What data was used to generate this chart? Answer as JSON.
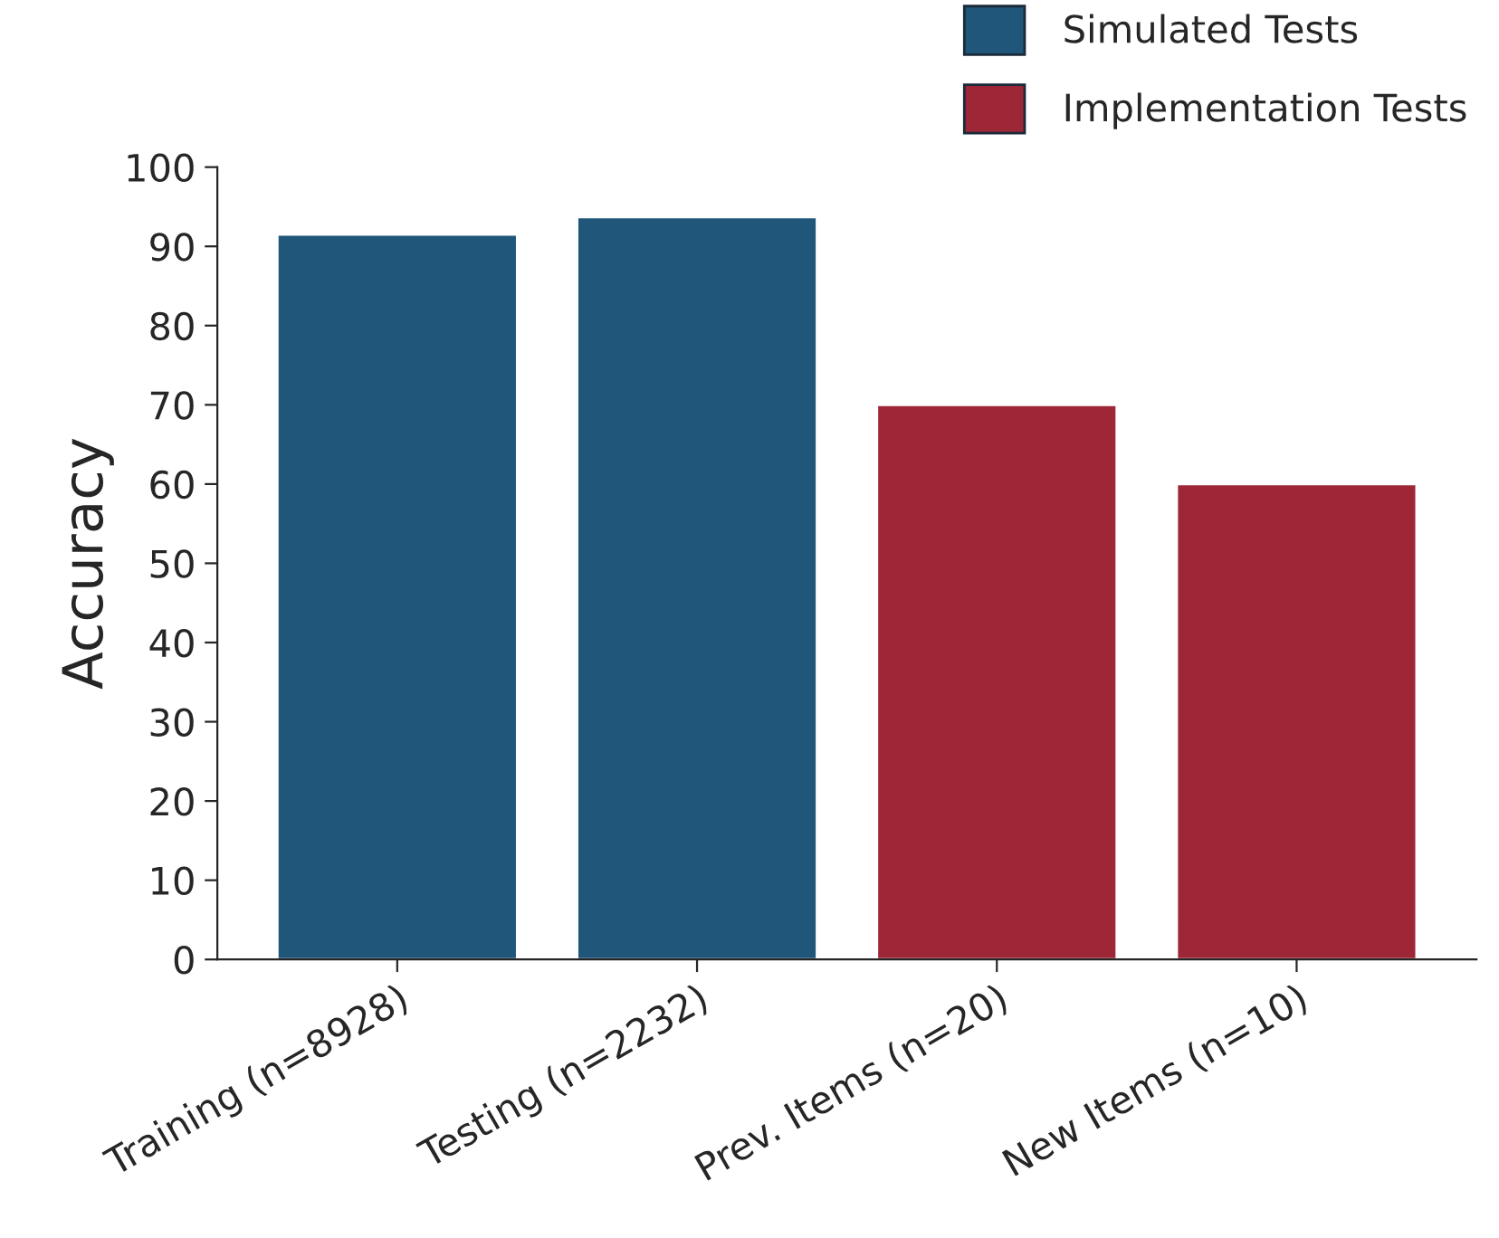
{
  "chart_data": {
    "type": "bar",
    "ylabel": "Accuracy",
    "categories": [
      "Training (n=8928)",
      "Testing (n=2232)",
      "Prev. Items (n=20)",
      "New Items (n=10)"
    ],
    "series": [
      {
        "name": "Simulated Tests",
        "color": "#1f5679",
        "values": [
          91.5,
          93.7,
          null,
          null
        ]
      },
      {
        "name": "Implementation Tests",
        "color": "#9e2737",
        "values": [
          null,
          null,
          70,
          60
        ]
      }
    ],
    "ylim": [
      0,
      100
    ],
    "yticks": [
      0,
      10,
      20,
      30,
      40,
      50,
      60,
      70,
      80,
      90,
      100
    ],
    "grid": false,
    "legend": "top right"
  }
}
